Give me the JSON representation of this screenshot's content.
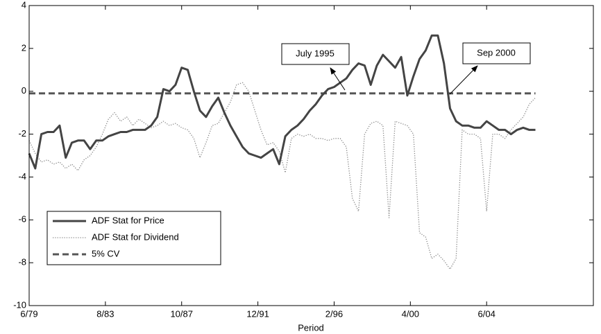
{
  "chart_data": {
    "type": "line",
    "x_label": "Period",
    "x": [
      "6/79",
      "10/79",
      "2/80",
      "6/80",
      "10/80",
      "2/81",
      "6/81",
      "10/81",
      "2/82",
      "6/82",
      "10/82",
      "2/83",
      "6/83",
      "10/83",
      "2/84",
      "6/84",
      "10/84",
      "2/85",
      "6/85",
      "10/85",
      "2/86",
      "6/86",
      "10/86",
      "2/87",
      "6/87",
      "10/87",
      "2/88",
      "6/88",
      "10/88",
      "2/89",
      "6/89",
      "10/89",
      "2/90",
      "6/90",
      "10/90",
      "2/91",
      "6/91",
      "10/91",
      "2/92",
      "6/92",
      "10/92",
      "2/93",
      "6/93",
      "10/93",
      "2/94",
      "6/94",
      "10/94",
      "2/95",
      "6/95",
      "10/95",
      "2/96",
      "6/96",
      "10/96",
      "2/97",
      "6/97",
      "10/97",
      "2/98",
      "6/98",
      "10/98",
      "2/99",
      "6/99",
      "10/99",
      "2/00",
      "6/00",
      "10/00",
      "2/01",
      "6/01",
      "10/01",
      "2/02",
      "6/02",
      "10/02",
      "2/03",
      "6/03",
      "10/03",
      "2/04",
      "6/04",
      "10/04",
      "2/05",
      "6/05",
      "10/05",
      "2/06",
      "6/06",
      "10/06",
      "2/07"
    ],
    "series": [
      {
        "name": "ADF Stat for Price",
        "color": "#444444",
        "style": "solid",
        "values": [
          -2.9,
          -3.6,
          -2.0,
          -1.9,
          -1.9,
          -1.6,
          -3.1,
          -2.4,
          -2.3,
          -2.3,
          -2.7,
          -2.3,
          -2.3,
          -2.1,
          -2.0,
          -1.9,
          -1.9,
          -1.8,
          -1.8,
          -1.8,
          -1.6,
          -1.2,
          0.1,
          0.0,
          0.3,
          1.1,
          1.0,
          0.0,
          -0.9,
          -1.2,
          -0.7,
          -0.3,
          -1.0,
          -1.6,
          -2.1,
          -2.6,
          -2.9,
          -3.0,
          -3.1,
          -2.9,
          -2.7,
          -3.4,
          -2.1,
          -1.8,
          -1.6,
          -1.3,
          -0.9,
          -0.6,
          -0.2,
          0.1,
          0.2,
          0.4,
          0.6,
          1.0,
          1.3,
          1.2,
          0.3,
          1.2,
          1.7,
          1.4,
          1.1,
          1.6,
          -0.2,
          0.7,
          1.5,
          1.9,
          2.6,
          2.6,
          1.3,
          -0.8,
          -1.4,
          -1.6,
          -1.6,
          -1.7,
          -1.7,
          -1.4,
          -1.6,
          -1.8,
          -1.8,
          -2.0,
          -1.8,
          -1.7,
          -1.8,
          -1.8
        ]
      },
      {
        "name": "ADF Stat for Dividend",
        "color": "#8a8a8a",
        "style": "dotted",
        "values": [
          -2.3,
          -2.9,
          -3.3,
          -3.2,
          -3.4,
          -3.3,
          -3.6,
          -3.4,
          -3.7,
          -3.2,
          -3.0,
          -2.6,
          -2.0,
          -1.3,
          -1.0,
          -1.4,
          -1.2,
          -1.6,
          -1.3,
          -1.5,
          -1.7,
          -1.6,
          -1.4,
          -1.6,
          -1.5,
          -1.7,
          -1.8,
          -2.2,
          -3.1,
          -2.4,
          -1.6,
          -1.5,
          -1.0,
          -0.5,
          0.3,
          0.4,
          0.0,
          -0.9,
          -1.8,
          -2.5,
          -2.4,
          -2.8,
          -3.8,
          -2.2,
          -2.0,
          -2.1,
          -2.0,
          -2.2,
          -2.2,
          -2.3,
          -2.2,
          -2.2,
          -2.6,
          -5.0,
          -5.6,
          -2.0,
          -1.5,
          -1.4,
          -1.6,
          -5.9,
          -1.4,
          -1.5,
          -1.6,
          -2.0,
          -6.6,
          -6.8,
          -7.8,
          -7.6,
          -7.9,
          -8.3,
          -7.8,
          -1.8,
          -2.0,
          -2.0,
          -2.2,
          -5.6,
          -2.0,
          -2.0,
          -2.2,
          -1.8,
          -1.5,
          -1.2,
          -0.6,
          -0.3
        ]
      },
      {
        "name": "5% CV",
        "color": "#555555",
        "style": "dashed",
        "values": [
          -0.1,
          -0.1,
          -0.1,
          -0.1,
          -0.1,
          -0.1,
          -0.1,
          -0.1,
          -0.1,
          -0.1,
          -0.1,
          -0.1,
          -0.1,
          -0.1,
          -0.1,
          -0.1,
          -0.1,
          -0.1,
          -0.1,
          -0.1,
          -0.1,
          -0.1,
          -0.1,
          -0.1,
          -0.1,
          -0.1,
          -0.1,
          -0.1,
          -0.1,
          -0.1,
          -0.1,
          -0.1,
          -0.1,
          -0.1,
          -0.1,
          -0.1,
          -0.1,
          -0.1,
          -0.1,
          -0.1,
          -0.1,
          -0.1,
          -0.1,
          -0.1,
          -0.1,
          -0.1,
          -0.1,
          -0.1,
          -0.1,
          -0.1,
          -0.1,
          -0.1,
          -0.1,
          -0.1,
          -0.1,
          -0.1,
          -0.1,
          -0.1,
          -0.1,
          -0.1,
          -0.1,
          -0.1,
          -0.1,
          -0.1,
          -0.1,
          -0.1,
          -0.1,
          -0.1,
          -0.1,
          -0.1,
          -0.1,
          -0.1,
          -0.1,
          -0.1,
          -0.1,
          -0.1,
          -0.1,
          -0.1,
          -0.1,
          -0.1,
          -0.1,
          -0.1,
          -0.1,
          -0.1
        ]
      }
    ],
    "xlim": [
      "6/79",
      "4/10"
    ],
    "xticks": [
      "6/79",
      "8/83",
      "10/87",
      "12/91",
      "2/96",
      "4/00",
      "6/04"
    ],
    "ylim": [
      -10,
      4
    ],
    "yticks": [
      -10,
      -8,
      -6,
      -4,
      -2,
      0,
      2,
      4
    ],
    "legend": "lower left",
    "annotations": [
      "July 1995",
      "Sep 2000"
    ]
  }
}
